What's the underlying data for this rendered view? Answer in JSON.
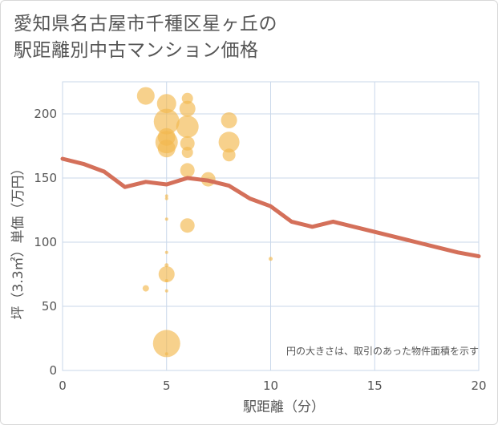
{
  "chart_data": {
    "type": "scatter",
    "title_lines": [
      "愛知県名古屋市千種区星ヶ丘の",
      "駅距離別中古マンション価格"
    ],
    "xlabel": "駅距離（分）",
    "ylabel": "坪（3.3㎡）単価（万円）",
    "xlim": [
      0,
      20
    ],
    "ylim": [
      0,
      225
    ],
    "xticks": [
      0,
      5,
      10,
      15,
      20
    ],
    "yticks": [
      0,
      50,
      100,
      150,
      200
    ],
    "grid": true,
    "annotation": "円の大きさは、取引のあった物件面積を示す",
    "colors": {
      "bubble": "#f3b94f",
      "trend": "#d4705a",
      "grid": "#c9d7ea"
    },
    "points": [
      {
        "x": 4,
        "y": 214,
        "s": 11
      },
      {
        "x": 5,
        "y": 208,
        "s": 12
      },
      {
        "x": 5,
        "y": 194,
        "s": 16
      },
      {
        "x": 5,
        "y": 182,
        "s": 11
      },
      {
        "x": 5,
        "y": 178,
        "s": 14
      },
      {
        "x": 5,
        "y": 173,
        "s": 11
      },
      {
        "x": 5,
        "y": 136,
        "s": 2
      },
      {
        "x": 5,
        "y": 134,
        "s": 2
      },
      {
        "x": 5,
        "y": 118,
        "s": 2
      },
      {
        "x": 5,
        "y": 92,
        "s": 2
      },
      {
        "x": 5,
        "y": 82,
        "s": 2.5
      },
      {
        "x": 5,
        "y": 75,
        "s": 10
      },
      {
        "x": 5,
        "y": 70,
        "s": 2
      },
      {
        "x": 5,
        "y": 62,
        "s": 2
      },
      {
        "x": 5,
        "y": 21,
        "s": 17
      },
      {
        "x": 5,
        "y": 13,
        "s": 2
      },
      {
        "x": 4,
        "y": 64,
        "s": 4
      },
      {
        "x": 6,
        "y": 212,
        "s": 7
      },
      {
        "x": 6,
        "y": 204,
        "s": 10
      },
      {
        "x": 6,
        "y": 190,
        "s": 14
      },
      {
        "x": 6,
        "y": 177,
        "s": 9
      },
      {
        "x": 6,
        "y": 170,
        "s": 7
      },
      {
        "x": 6,
        "y": 156,
        "s": 9
      },
      {
        "x": 6,
        "y": 113,
        "s": 9
      },
      {
        "x": 7,
        "y": 149,
        "s": 9
      },
      {
        "x": 8,
        "y": 195,
        "s": 10
      },
      {
        "x": 8,
        "y": 178,
        "s": 13
      },
      {
        "x": 8,
        "y": 168,
        "s": 8
      },
      {
        "x": 10,
        "y": 87,
        "s": 2.5
      }
    ],
    "trend": {
      "x": [
        0,
        1,
        2,
        3,
        4,
        5,
        6,
        7,
        8,
        9,
        10,
        11,
        12,
        13,
        14,
        15,
        16,
        17,
        18,
        19,
        20
      ],
      "y": [
        165,
        161,
        155,
        143,
        147,
        145,
        150,
        148,
        144,
        134,
        128,
        116,
        112,
        116,
        112,
        108,
        104,
        100,
        96,
        92,
        89
      ]
    }
  }
}
